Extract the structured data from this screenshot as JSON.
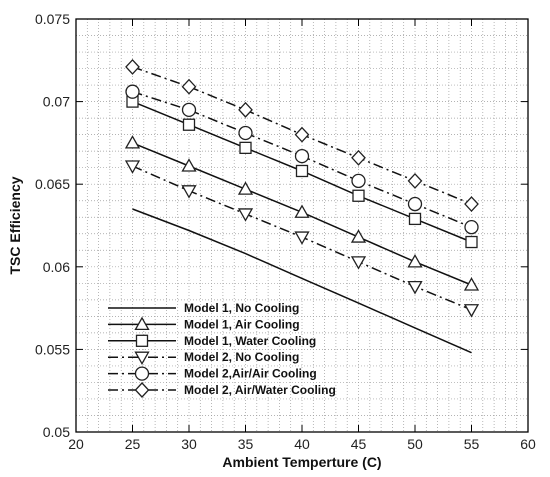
{
  "chart_data": {
    "type": "line",
    "xlabel": "Ambient Temperture (C)",
    "ylabel": "TSC Efficiency",
    "xlim": [
      20,
      60
    ],
    "ylim": [
      0.05,
      0.075
    ],
    "x_ticks": [
      "20",
      "25",
      "30",
      "35",
      "40",
      "45",
      "50",
      "55",
      "60"
    ],
    "y_ticks": [
      "0.05",
      "0.055",
      "0.06",
      "0.065",
      "0.07",
      "0.075"
    ],
    "grid": "dotted, minor and major",
    "legend_position": "lower-left",
    "x": [
      25,
      30,
      35,
      40,
      45,
      50,
      55
    ],
    "series": [
      {
        "name": "Model 1, No Cooling",
        "line": "solid",
        "marker": "none",
        "values": [
          0.0635,
          0.0622,
          0.0608,
          0.0593,
          0.0578,
          0.0563,
          0.0548
        ]
      },
      {
        "name": "Model 1, Air Cooling",
        "line": "solid",
        "marker": "triangle-up",
        "values": [
          0.0675,
          0.0661,
          0.0647,
          0.0633,
          0.0618,
          0.0603,
          0.0589
        ]
      },
      {
        "name": "Model 1, Water Cooling",
        "line": "solid",
        "marker": "square",
        "values": [
          0.07,
          0.0686,
          0.0672,
          0.0658,
          0.0643,
          0.0629,
          0.0615
        ]
      },
      {
        "name": "Model 2, No Cooling",
        "line": "dashdot",
        "marker": "triangle-down",
        "values": [
          0.0661,
          0.0646,
          0.0632,
          0.0618,
          0.0603,
          0.0588,
          0.0574
        ]
      },
      {
        "name": "Model 2,Air/Air Cooling",
        "line": "dashdot",
        "marker": "circle",
        "values": [
          0.0706,
          0.0695,
          0.0681,
          0.0667,
          0.0652,
          0.0638,
          0.0624
        ]
      },
      {
        "name": "Model 2, Air/Water Cooling",
        "line": "dashdot",
        "marker": "diamond",
        "values": [
          0.0721,
          0.0709,
          0.0695,
          0.068,
          0.0666,
          0.0652,
          0.0638
        ]
      }
    ]
  }
}
